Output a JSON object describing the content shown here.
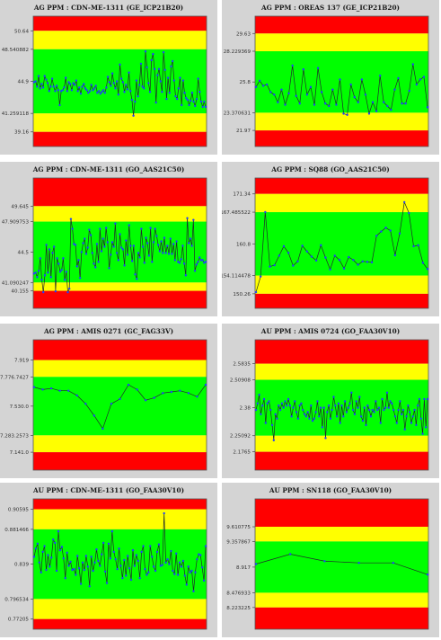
{
  "colors": {
    "red": "#ff0000",
    "yellow": "#ffff00",
    "green": "#00ff00",
    "line": "#1f2a2a",
    "marker": "#2040ff",
    "background": "#d4d4d4"
  },
  "chart_data": [
    {
      "type": "line",
      "title": "AG PPM : CDN-ME-1311 (GE_ICP21B20)",
      "ylim": [
        37.5,
        52.3
      ],
      "zones": [
        50.64,
        48.540882,
        41.259118,
        39.16
      ],
      "yticks": [
        "50.64",
        "48.540882",
        "44.9",
        "41.259118",
        "39.16"
      ],
      "series": [
        {
          "values": [
            44.8,
            44.9,
            44.3,
            45.5,
            44.1,
            44.6,
            44.2,
            45.5,
            45.1,
            44.7,
            43.8,
            44.3,
            45.2,
            44.3,
            43.8,
            44.4,
            43.9,
            42.2,
            43.8,
            43.9,
            44.2,
            45.3,
            43.8,
            44.8,
            44.6,
            43.9,
            44.7,
            44.5,
            45.0,
            43.8,
            44.2,
            43.5,
            44.3,
            44.6,
            44.1,
            43.9,
            43.6,
            43.8,
            44.5,
            43.9,
            44.1,
            44.4,
            43.6,
            43.8,
            43.5,
            43.7,
            43.9,
            43.6,
            44.2,
            45.4,
            44.8,
            44.4,
            45.8,
            44.7,
            44.1,
            44.9,
            43.4,
            46.8,
            45.2,
            44.8,
            43.7,
            44.5,
            44.0,
            45.9,
            43.8,
            42.8,
            41.0,
            42.6,
            45.0,
            43.2,
            44.5,
            46.9,
            44.3,
            44.1,
            48.3,
            46.5,
            44.7,
            43.7,
            47.3,
            48.0,
            46.3,
            42.5,
            45.6,
            46.3,
            44.9,
            43.7,
            48.2,
            46.2,
            42.9,
            45.3,
            43.6,
            46.6,
            47.2,
            45.0,
            43.2,
            42.9,
            44.1,
            45.3,
            42.2,
            45.0,
            43.6,
            43.0,
            42.8,
            42.2,
            42.7,
            43.6,
            42.6,
            42.1,
            42.9,
            45.2,
            43.7,
            42.6,
            42.0,
            42.6,
            42.0
          ]
        }
      ]
    },
    {
      "type": "line",
      "title": "AG PPM : OREAS 137 (GE_ICP21B20)",
      "ylim": [
        20.7,
        31.0
      ],
      "zones": [
        29.63,
        28.229369,
        23.370631,
        21.97
      ],
      "yticks": [
        "29.63",
        "28.229369",
        "25.8",
        "23.370631",
        "21.97"
      ],
      "series": [
        {
          "values": [
            25.4,
            25.9,
            25.5,
            25.6,
            25.0,
            24.8,
            24.2,
            25.2,
            24.0,
            24.9,
            27.1,
            24.7,
            24.1,
            26.8,
            24.8,
            25.4,
            24.0,
            26.9,
            25.0,
            24.1,
            23.9,
            25.2,
            24.0,
            26.0,
            23.3,
            23.2,
            25.6,
            24.6,
            24.2,
            26.0,
            24.8,
            23.3,
            24.2,
            23.5,
            26.3,
            24.2,
            23.9,
            23.6,
            25.2,
            26.1,
            24.1,
            24.1,
            25.1,
            27.2,
            25.6,
            26.0,
            26.2,
            23.8
          ]
        }
      ]
    },
    {
      "type": "line",
      "title": "AG PPM : CDN-ME-1311 (GO_AAS21C50)",
      "ylim": [
        38.2,
        52.8
      ],
      "zones": [
        49.645,
        47.909753,
        41.090247,
        40.155
      ],
      "yticks": [
        "49.645",
        "47.909753",
        "44.5",
        "41.090247",
        "40.155"
      ],
      "series": [
        {
          "values": [
            42.1,
            42.2,
            41.7,
            42.4,
            43.8,
            41.4,
            40.0,
            41.9,
            45.3,
            42.2,
            44.8,
            41.7,
            44.4,
            45.1,
            40.1,
            43.8,
            43.2,
            42.3,
            42.5,
            43.8,
            41.4,
            42.3,
            40.0,
            40.4,
            48.2,
            47.1,
            45.4,
            45.3,
            42.9,
            43.6,
            41.6,
            44.5,
            45.5,
            46.0,
            44.3,
            45.0,
            47.0,
            46.4,
            44.4,
            43.2,
            42.8,
            45.4,
            43.4,
            47.1,
            44.6,
            46.0,
            45.1,
            47.2,
            45.6,
            42.7,
            44.2,
            45.6,
            45.1,
            47.7,
            44.4,
            43.6,
            46.5,
            45.0,
            44.8,
            43.0,
            45.8,
            44.2,
            47.5,
            45.2,
            43.5,
            45.2,
            42.0,
            41.5,
            44.4,
            43.9,
            47.1,
            45.1,
            43.3,
            46.1,
            45.5,
            44.1,
            47.2,
            43.4,
            45.6,
            47.1,
            46.3,
            45.3,
            44.6,
            45.7,
            44.4,
            46.1,
            44.4,
            45.2,
            44.3,
            46.0,
            44.3,
            45.4,
            43.6,
            45.7,
            43.4,
            43.3,
            43.7,
            45.2,
            43.2,
            41.9,
            48.3,
            45.5,
            46.0,
            45.2,
            48.1,
            42.4,
            43.1,
            43.4,
            43.9,
            43.6,
            43.6,
            43.3,
            43.4
          ]
        }
      ]
    },
    {
      "type": "line",
      "title": "AG PPM : SQ88 (GO_AAS21C50)",
      "ylim": [
        147.2,
        174.7
      ],
      "zones": [
        171.34,
        167.485522,
        154.114478,
        150.26
      ],
      "yticks": [
        "171.34",
        "167.485522",
        "160.8",
        "154.114478",
        "150.26"
      ],
      "series": [
        {
          "values": [
            150.6,
            153.9,
            167.5,
            156.0,
            156.3,
            158.3,
            160.3,
            158.9,
            156.2,
            157.1,
            160.4,
            159.2,
            158.1,
            157.3,
            160.5,
            157.9,
            155.4,
            158.3,
            157.4,
            155.6,
            158.0,
            157.4,
            156.4,
            157.1,
            157.0,
            156.9,
            162.5,
            163.4,
            164.2,
            163.6,
            158.4,
            163.0,
            169.6,
            167.3,
            160.3,
            160.5,
            156.8,
            155.5
          ]
        }
      ]
    },
    {
      "type": "line",
      "title": "AG PPM : AMIS 0271 (GC_FAG33V)",
      "ylim": [
        6.99,
        8.09
      ],
      "zones": [
        7.919,
        7.7767427,
        7.2832573,
        7.141
      ],
      "yticks": [
        "7.919",
        "7.776.7427",
        "7.530.0",
        "7.283.2573",
        "7.141.0"
      ],
      "series": [
        {
          "values": [
            7.69,
            7.67,
            7.68,
            7.66,
            7.66,
            7.62,
            7.55,
            7.45,
            7.34,
            7.55,
            7.59,
            7.71,
            7.67,
            7.58,
            7.6,
            7.64,
            7.65,
            7.66,
            7.64,
            7.61,
            7.71
          ]
        }
      ]
    },
    {
      "type": "line",
      "title": "AU PPM : AMIS 0724 (GO_FAA30V10)",
      "ylim": [
        2.092,
        2.694
      ],
      "zones": [
        2.5835,
        2.50908,
        2.25092,
        2.1765
      ],
      "yticks": [
        "2.5835",
        "2.50908",
        "2.38",
        "2.25092",
        "2.1765"
      ],
      "series": [
        {
          "values": [
            2.37,
            2.4,
            2.44,
            2.35,
            2.39,
            2.42,
            2.31,
            2.4,
            2.41,
            2.37,
            2.3,
            2.23,
            2.35,
            2.33,
            2.39,
            2.37,
            2.4,
            2.38,
            2.41,
            2.39,
            2.42,
            2.39,
            2.34,
            2.38,
            2.41,
            2.36,
            2.33,
            2.39,
            2.4,
            2.37,
            2.35,
            2.34,
            2.36,
            2.33,
            2.39,
            2.32,
            2.33,
            2.36,
            2.41,
            2.34,
            2.38,
            2.29,
            2.38,
            2.24,
            2.36,
            2.39,
            2.33,
            2.37,
            2.43,
            2.39,
            2.34,
            2.4,
            2.31,
            2.39,
            2.34,
            2.41,
            2.36,
            2.38,
            2.4,
            2.45,
            2.37,
            2.35,
            2.41,
            2.38,
            2.43,
            2.34,
            2.32,
            2.38,
            2.3,
            2.39,
            2.37,
            2.34,
            2.37,
            2.36,
            2.41,
            2.37,
            2.38,
            2.31,
            2.42,
            2.37,
            2.38,
            2.45,
            2.38,
            2.41,
            2.4,
            2.37,
            2.34,
            2.31,
            2.37,
            2.41,
            2.35,
            2.37,
            2.28,
            2.34,
            2.39,
            2.36,
            2.31,
            2.34,
            2.37,
            2.3,
            2.39,
            2.42,
            2.33,
            2.26,
            2.42,
            2.29,
            2.42
          ]
        }
      ]
    },
    {
      "type": "line",
      "title": "AU PPM : CDN-ME-1311 (GO_FAA30V10)",
      "ylim": [
        0.7597,
        0.9186
      ],
      "zones": [
        0.90595,
        0.881466,
        0.796534,
        0.77205
      ],
      "yticks": [
        "0.90595",
        "0.881466",
        "0.839",
        "0.796534",
        "0.77205"
      ],
      "series": [
        {
          "values": [
            0.848,
            0.858,
            0.864,
            0.841,
            0.829,
            0.854,
            0.861,
            0.832,
            0.85,
            0.836,
            0.847,
            0.869,
            0.865,
            0.831,
            0.879,
            0.856,
            0.86,
            0.846,
            0.822,
            0.853,
            0.837,
            0.842,
            0.832,
            0.833,
            0.826,
            0.849,
            0.834,
            0.815,
            0.841,
            0.832,
            0.849,
            0.836,
            0.812,
            0.848,
            0.831,
            0.841,
            0.857,
            0.843,
            0.837,
            0.851,
            0.865,
            0.83,
            0.816,
            0.864,
            0.846,
            0.879,
            0.854,
            0.845,
            0.833,
            0.858,
            0.837,
            0.822,
            0.844,
            0.825,
            0.849,
            0.834,
            0.82,
            0.856,
            0.837,
            0.85,
            0.843,
            0.822,
            0.854,
            0.861,
            0.833,
            0.826,
            0.829,
            0.861,
            0.848,
            0.836,
            0.831,
            0.854,
            0.863,
            0.837,
            0.838,
            0.901,
            0.841,
            0.845,
            0.839,
            0.855,
            0.831,
            0.827,
            0.852,
            0.826,
            0.841,
            0.836,
            0.843,
            0.825,
            0.814,
            0.836,
            0.829,
            0.831,
            0.806,
            0.829,
            0.845,
            0.851,
            0.85,
            0.835,
            0.819,
            0.861
          ]
        }
      ]
    },
    {
      "type": "line",
      "title": "AU PPM : SN118 (GO_FAA30V10)",
      "ylim": [
        7.85,
        10.09
      ],
      "zones": [
        9.610775,
        9.357867,
        8.476933,
        8.223225
      ],
      "yticks": [
        "9.610775",
        "9.357867",
        "8.917",
        "8.476933",
        "8.223225"
      ],
      "series": [
        {
          "values": [
            8.97,
            9.14,
            9.02,
            8.99,
            8.99,
            8.79
          ]
        }
      ]
    }
  ]
}
